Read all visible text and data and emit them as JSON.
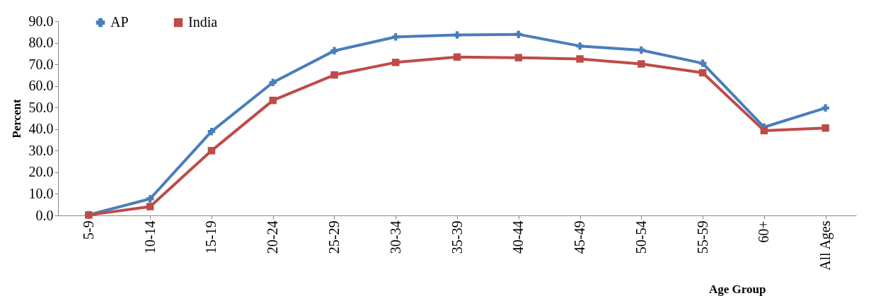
{
  "chart_data": {
    "type": "line",
    "xlabel": "Age Group",
    "ylabel": "Percent",
    "categories": [
      "5-9",
      "10-14",
      "15-19",
      "20-24",
      "25-29",
      "30-34",
      "35-39",
      "40-44",
      "45-49",
      "50-54",
      "55-59",
      "60+",
      "All Ages"
    ],
    "series": [
      {
        "name": "AP",
        "color": "#4a7ebb",
        "marker": "cross",
        "values": [
          0.3,
          7.7,
          38.9,
          61.6,
          76.3,
          82.7,
          83.6,
          83.9,
          78.5,
          76.6,
          70.5,
          40.9,
          49.8
        ]
      },
      {
        "name": "India",
        "color": "#be4b48",
        "marker": "square",
        "values": [
          0.2,
          4.1,
          30.0,
          53.3,
          65.1,
          70.9,
          73.4,
          73.1,
          72.5,
          70.2,
          66.1,
          39.3,
          40.5
        ]
      }
    ],
    "ylim": [
      0,
      90
    ],
    "yticks": [
      {
        "value": 0,
        "label": "0.0"
      },
      {
        "value": 10,
        "label": "10.0"
      },
      {
        "value": 20,
        "label": "20.0"
      },
      {
        "value": 30,
        "label": "30.0"
      },
      {
        "value": 40,
        "label": "40.0"
      },
      {
        "value": 50,
        "label": "50.0"
      },
      {
        "value": 60,
        "label": "60.0"
      },
      {
        "value": 70,
        "label": "70.0"
      },
      {
        "value": 80,
        "label": "80.0"
      },
      {
        "value": 90,
        "label": "90.0"
      }
    ],
    "grid": false,
    "legend": "top left",
    "line_style": "solid"
  }
}
